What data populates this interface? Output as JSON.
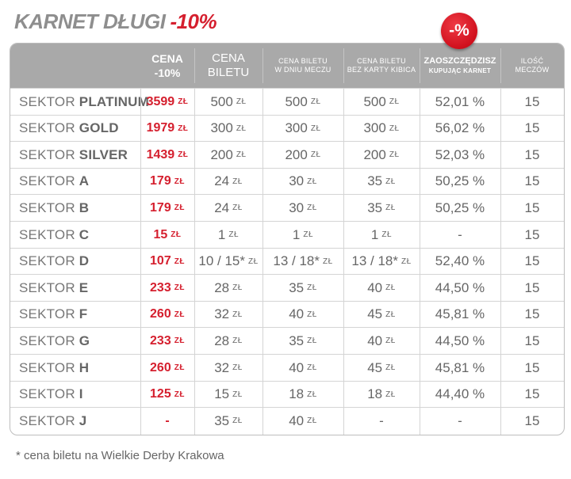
{
  "title": {
    "part1": "KARNET DŁUGI",
    "part2": "-10%"
  },
  "badge": "-%",
  "header": {
    "cena_main": "CENA",
    "cena_sub": "-10%",
    "biletu_line1": "CENA",
    "biletu_line2": "BILETU",
    "dniu_line1": "CENA BILETU",
    "dniu_line2": "W DNIU MECZU",
    "karta_line1": "CENA BILETU",
    "karta_line2": "BEZ KARTY KIBICA",
    "save_line1": "ZAOSZCZĘDZISZ",
    "save_line2": "KUPUJĄC KARNET",
    "ilosc_line1": "ILOŚĆ",
    "ilosc_line2": "MECZÓW"
  },
  "sector_prefix": "SEKTOR",
  "unit": "ZŁ",
  "rows": [
    {
      "sector": "PLATINUM",
      "price": "3599",
      "bilet": "500",
      "dniu": "500",
      "karta": "500",
      "save": "52,01 %",
      "ilosc": "15"
    },
    {
      "sector": "GOLD",
      "price": "1979",
      "bilet": "300",
      "dniu": "300",
      "karta": "300",
      "save": "56,02 %",
      "ilosc": "15"
    },
    {
      "sector": "SILVER",
      "price": "1439",
      "bilet": "200",
      "dniu": "200",
      "karta": "200",
      "save": "52,03 %",
      "ilosc": "15"
    },
    {
      "sector": "A",
      "price": "179",
      "bilet": "24",
      "dniu": "30",
      "karta": "35",
      "save": "50,25 %",
      "ilosc": "15"
    },
    {
      "sector": "B",
      "price": "179",
      "bilet": "24",
      "dniu": "30",
      "karta": "35",
      "save": "50,25 %",
      "ilosc": "15"
    },
    {
      "sector": "C",
      "price": "15",
      "bilet": "1",
      "dniu": "1",
      "karta": "1",
      "save": "-",
      "ilosc": "15"
    },
    {
      "sector": "D",
      "price": "107",
      "bilet": "10 / 15*",
      "dniu": "13 / 18*",
      "karta": "13 / 18*",
      "save": "52,40 %",
      "ilosc": "15"
    },
    {
      "sector": "E",
      "price": "233",
      "bilet": "28",
      "dniu": "35",
      "karta": "40",
      "save": "44,50 %",
      "ilosc": "15"
    },
    {
      "sector": "F",
      "price": "260",
      "bilet": "32",
      "dniu": "40",
      "karta": "45",
      "save": "45,81 %",
      "ilosc": "15"
    },
    {
      "sector": "G",
      "price": "233",
      "bilet": "28",
      "dniu": "35",
      "karta": "40",
      "save": "44,50 %",
      "ilosc": "15"
    },
    {
      "sector": "H",
      "price": "260",
      "bilet": "32",
      "dniu": "40",
      "karta": "45",
      "save": "45,81 %",
      "ilosc": "15"
    },
    {
      "sector": "I",
      "price": "125",
      "bilet": "15",
      "dniu": "18",
      "karta": "18",
      "save": "44,40 %",
      "ilosc": "15"
    },
    {
      "sector": "J",
      "price": "-",
      "bilet": "35",
      "dniu": "40",
      "karta": "-",
      "save": "-",
      "ilosc": "15"
    }
  ],
  "footnote": "* cena biletu na Wielkie Derby Krakowa",
  "colors": {
    "accent": "#d51f2e",
    "header_bg": "#a9a9a9",
    "text": "#666666"
  }
}
